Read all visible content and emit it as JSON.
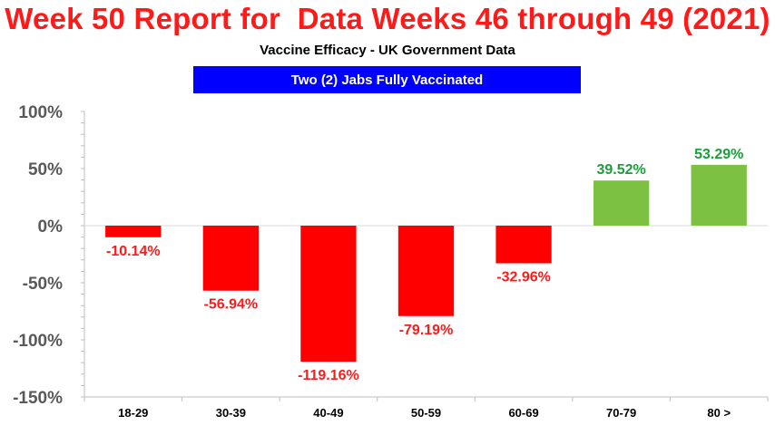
{
  "header": {
    "title": "Week 50 Report for  Data Weeks 46 through 49 (2021)",
    "subtitle": "Vaccine Efficacy - UK Government Data",
    "banner": "Two (2) Jabs Fully Vaccinated"
  },
  "colors": {
    "title": "#ff1a1a",
    "banner_bg": "#0000ff",
    "negative": "#ff0000",
    "positive": "#7cc142",
    "positive_label": "#1a9e3a",
    "negative_label": "#ff1a1a"
  },
  "chart_data": {
    "type": "bar",
    "title": "Week 50 Report for  Data Weeks 46 through 49 (2021)",
    "subtitle": "Vaccine Efficacy - UK Government Data",
    "categories": [
      "18-29",
      "30-39",
      "40-49",
      "50-59",
      "60-69",
      "70-79",
      "80 >"
    ],
    "values": [
      -10.14,
      -56.94,
      -119.16,
      -79.19,
      -32.96,
      39.52,
      53.29
    ],
    "data_labels": [
      "-10.14%",
      "-56.94%",
      "-119.16%",
      "-79.19%",
      "-32.96%",
      "39.52%",
      "53.29%"
    ],
    "ylim": [
      -150,
      100
    ],
    "yticks": [
      100,
      50,
      0,
      -50,
      -100,
      -150
    ],
    "ytick_labels": [
      "100%",
      "50%",
      "0%",
      "-50%",
      "-100%",
      "-150%"
    ],
    "xlabel": "",
    "ylabel": "",
    "grid": false,
    "legend": "none"
  }
}
